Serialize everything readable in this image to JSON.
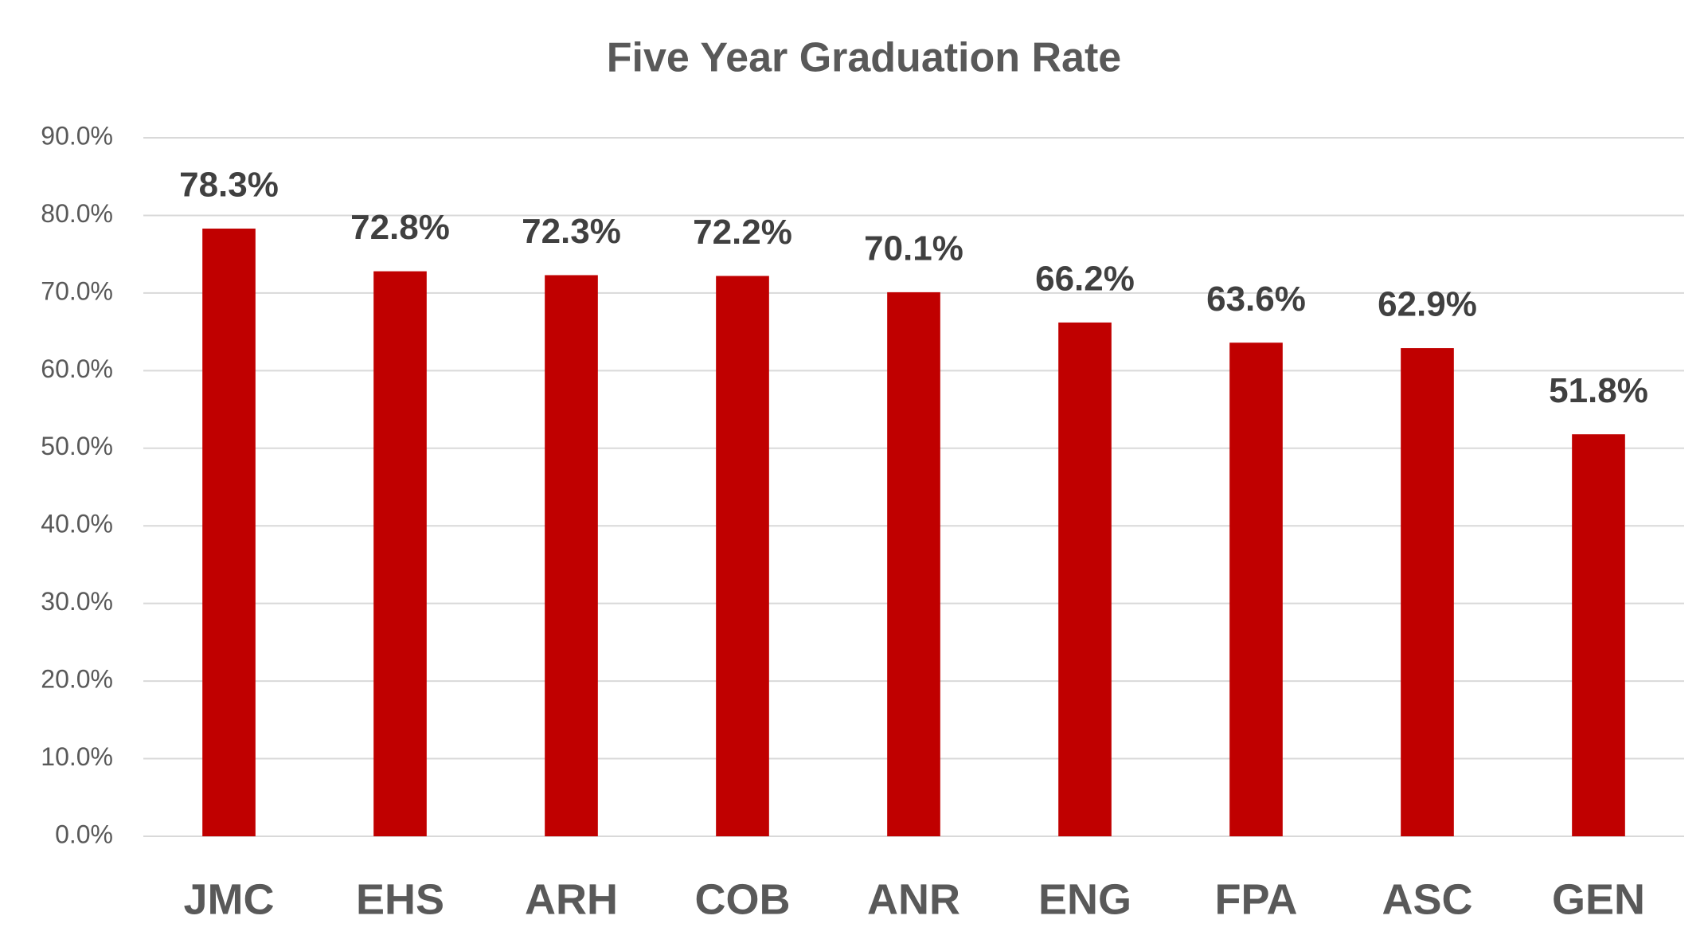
{
  "chart_data": {
    "type": "bar",
    "title": "Five Year Graduation Rate",
    "categories": [
      "JMC",
      "EHS",
      "ARH",
      "COB",
      "ANR",
      "ENG",
      "FPA",
      "ASC",
      "GEN"
    ],
    "values": [
      78.3,
      72.8,
      72.3,
      72.2,
      70.1,
      66.2,
      63.6,
      62.9,
      51.8
    ],
    "value_labels": [
      "78.3%",
      "72.8%",
      "72.3%",
      "72.2%",
      "70.1%",
      "66.2%",
      "63.6%",
      "62.9%",
      "51.8%"
    ],
    "color": "#c00000",
    "ylim": [
      0,
      90
    ],
    "yticks": [
      {
        "value": 0,
        "label": "0.0%"
      },
      {
        "value": 10,
        "label": "10.0%"
      },
      {
        "value": 20,
        "label": "20.0%"
      },
      {
        "value": 30,
        "label": "30.0%"
      },
      {
        "value": 40,
        "label": "40.0%"
      },
      {
        "value": 50,
        "label": "50.0%"
      },
      {
        "value": 60,
        "label": "60.0%"
      },
      {
        "value": 70,
        "label": "70.0%"
      },
      {
        "value": 80,
        "label": "80.0%"
      },
      {
        "value": 90,
        "label": "90.0%"
      }
    ],
    "grid": true
  }
}
